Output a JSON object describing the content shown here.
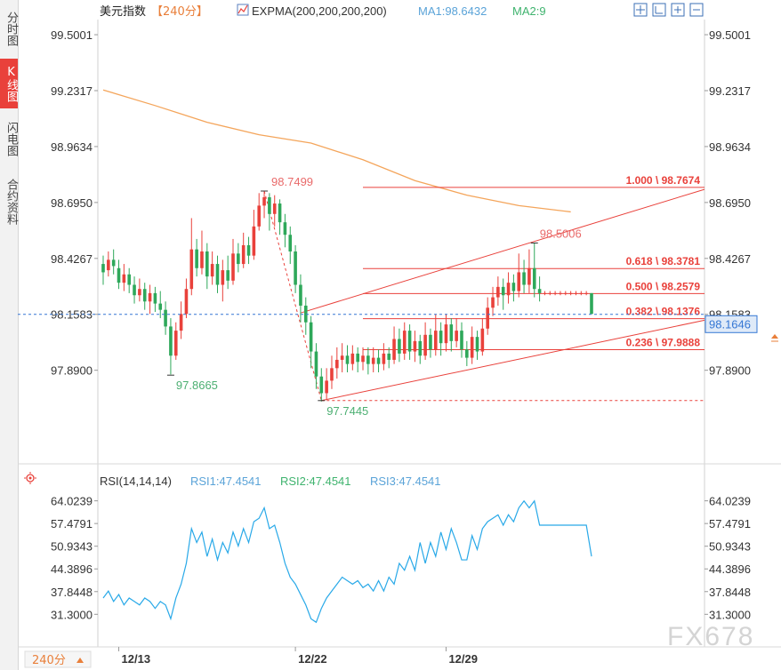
{
  "sidebar": {
    "tabs": [
      {
        "label": "分时图",
        "active": false
      },
      {
        "label": "K线图",
        "active": true
      },
      {
        "label": "闪电图",
        "active": false
      },
      {
        "label": "合约资料",
        "active": false
      }
    ]
  },
  "header": {
    "symbol": "美元指数",
    "period": "【240分】",
    "indicator": "EXPMA(200,200,200,200)",
    "ma1": "MA1:98.6432",
    "ma2": "MA2:9"
  },
  "rsi_header": {
    "name": "RSI(14,14,14)",
    "rsi1": "RSI1:47.4541",
    "rsi2": "RSI2:47.4541",
    "rsi3": "RSI3:47.4541"
  },
  "footer": {
    "period_button": "240分",
    "watermark": "FX678"
  },
  "colors": {
    "up": "#e9413b",
    "down": "#2ea85a",
    "expma": "#f4a55b",
    "rsi": "#29a9e8",
    "grid_label": "#333333",
    "current_price": "#3577d4"
  },
  "chart_data": {
    "type": "candlestick",
    "price_axis": {
      "range": [
        97.62,
        99.56
      ],
      "ticks": [
        "99.5001",
        "99.2317",
        "98.9634",
        "98.6950",
        "98.4267",
        "98.1583",
        "97.8900"
      ]
    },
    "rsi_axis": {
      "range": [
        26.0,
        67.0
      ],
      "ticks": [
        "64.0239",
        "57.4791",
        "50.9343",
        "44.3896",
        "37.8448",
        "31.3000"
      ]
    },
    "x_labels": [
      {
        "label": "12/13",
        "index": 3
      },
      {
        "label": "12/22",
        "index": 37
      },
      {
        "label": "12/29",
        "index": 66
      }
    ],
    "current_price": "98.1646",
    "price_tag": "98.1583",
    "annotations": {
      "high": {
        "label": "98.7499",
        "index": 31,
        "value": 98.7499
      },
      "low1": {
        "label": "97.8665",
        "index": 13,
        "value": 97.8665
      },
      "low2": {
        "label": "97.7445",
        "index": 42,
        "value": 97.7445
      },
      "high2": {
        "label": "98.5006",
        "index": 83,
        "value": 98.5006
      }
    },
    "fib_levels": [
      {
        "label": "1.000 \\ 98.7674",
        "value": 98.7674
      },
      {
        "label": "0.618 \\ 98.3781",
        "value": 98.3781
      },
      {
        "label": "0.500 \\ 98.2579",
        "value": 98.2579
      },
      {
        "label": "0.382 \\ 98.1376",
        "value": 98.1376
      },
      {
        "label": "0.236 \\ 97.9888",
        "value": 97.9888
      }
    ],
    "expma": [
      [
        0,
        99.235
      ],
      [
        10,
        99.16
      ],
      [
        20,
        99.08
      ],
      [
        30,
        99.02
      ],
      [
        40,
        98.98
      ],
      [
        50,
        98.9
      ],
      [
        60,
        98.8
      ],
      [
        70,
        98.73
      ],
      [
        80,
        98.68
      ],
      [
        90,
        98.65
      ]
    ],
    "candles": [
      [
        98.4,
        98.36,
        98.44,
        98.3
      ],
      [
        98.37,
        98.42,
        98.46,
        98.34
      ],
      [
        98.42,
        98.39,
        98.47,
        98.35
      ],
      [
        98.38,
        98.31,
        98.42,
        98.28
      ],
      [
        98.31,
        98.35,
        98.4,
        98.27
      ],
      [
        98.35,
        98.3,
        98.38,
        98.26
      ],
      [
        98.3,
        98.25,
        98.34,
        98.21
      ],
      [
        98.25,
        98.28,
        98.33,
        98.22
      ],
      [
        98.28,
        98.22,
        98.31,
        98.18
      ],
      [
        98.22,
        98.26,
        98.3,
        98.16
      ],
      [
        98.26,
        98.21,
        98.29,
        98.17
      ],
      [
        98.21,
        98.18,
        98.27,
        98.14
      ],
      [
        98.18,
        98.1,
        98.22,
        98.06
      ],
      [
        98.1,
        97.96,
        98.14,
        97.87
      ],
      [
        97.96,
        98.08,
        98.12,
        97.94
      ],
      [
        98.08,
        98.16,
        98.22,
        98.04
      ],
      [
        98.16,
        98.28,
        98.33,
        98.14
      ],
      [
        98.28,
        98.47,
        98.62,
        98.25
      ],
      [
        98.47,
        98.38,
        98.52,
        98.34
      ],
      [
        98.38,
        98.46,
        98.56,
        98.35
      ],
      [
        98.46,
        98.34,
        98.5,
        98.28
      ],
      [
        98.34,
        98.4,
        98.46,
        98.3
      ],
      [
        98.4,
        98.3,
        98.44,
        98.26
      ],
      [
        98.3,
        98.37,
        98.42,
        98.22
      ],
      [
        98.37,
        98.32,
        98.44,
        98.28
      ],
      [
        98.32,
        98.45,
        98.52,
        98.3
      ],
      [
        98.45,
        98.4,
        98.5,
        98.36
      ],
      [
        98.4,
        98.49,
        98.55,
        98.38
      ],
      [
        98.49,
        98.44,
        98.53,
        98.4
      ],
      [
        98.44,
        98.58,
        98.66,
        98.42
      ],
      [
        98.58,
        98.68,
        98.74,
        98.56
      ],
      [
        98.68,
        98.72,
        98.75,
        98.62
      ],
      [
        98.72,
        98.64,
        98.74,
        98.56
      ],
      [
        98.64,
        98.69,
        98.73,
        98.58
      ],
      [
        98.69,
        98.6,
        98.71,
        98.54
      ],
      [
        98.6,
        98.54,
        98.64,
        98.48
      ],
      [
        98.54,
        98.46,
        98.58,
        98.4
      ],
      [
        98.46,
        98.3,
        98.49,
        98.26
      ],
      [
        98.3,
        98.2,
        98.35,
        98.12
      ],
      [
        98.2,
        98.12,
        98.24,
        98.06
      ],
      [
        98.12,
        97.98,
        98.15,
        97.9
      ],
      [
        97.98,
        97.86,
        98.02,
        97.8
      ],
      [
        97.86,
        97.78,
        97.9,
        97.74
      ],
      [
        97.78,
        97.84,
        97.9,
        97.75
      ],
      [
        97.84,
        97.9,
        97.96,
        97.8
      ],
      [
        97.9,
        97.94,
        98.0,
        97.85
      ],
      [
        97.94,
        97.96,
        98.02,
        97.88
      ],
      [
        97.96,
        97.92,
        98.01,
        97.88
      ],
      [
        97.92,
        97.97,
        98.01,
        97.89
      ],
      [
        97.97,
        97.93,
        98.0,
        97.88
      ],
      [
        97.93,
        97.96,
        98.0,
        97.89
      ],
      [
        97.96,
        97.92,
        98.0,
        97.87
      ],
      [
        97.92,
        97.95,
        98.0,
        97.88
      ],
      [
        97.95,
        97.92,
        97.99,
        97.88
      ],
      [
        97.92,
        97.97,
        98.02,
        97.89
      ],
      [
        97.97,
        97.94,
        98.0,
        97.9
      ],
      [
        97.94,
        98.04,
        98.1,
        97.92
      ],
      [
        98.04,
        97.97,
        98.09,
        97.93
      ],
      [
        97.97,
        98.08,
        98.12,
        97.94
      ],
      [
        98.08,
        97.98,
        98.11,
        97.94
      ],
      [
        97.98,
        98.03,
        98.08,
        97.93
      ],
      [
        98.03,
        97.96,
        98.06,
        97.92
      ],
      [
        97.96,
        98.06,
        98.12,
        97.94
      ],
      [
        98.06,
        97.99,
        98.09,
        97.95
      ],
      [
        97.99,
        98.08,
        98.16,
        97.96
      ],
      [
        98.08,
        98.02,
        98.12,
        97.96
      ],
      [
        98.02,
        98.11,
        98.16,
        97.98
      ],
      [
        98.11,
        98.03,
        98.14,
        97.98
      ],
      [
        98.03,
        98.08,
        98.14,
        98.0
      ],
      [
        98.08,
        97.99,
        98.12,
        97.95
      ],
      [
        97.99,
        97.95,
        98.03,
        97.91
      ],
      [
        97.95,
        98.05,
        98.1,
        97.92
      ],
      [
        98.05,
        97.98,
        98.08,
        97.94
      ],
      [
        97.98,
        98.09,
        98.14,
        97.96
      ],
      [
        98.09,
        98.19,
        98.24,
        98.06
      ],
      [
        98.19,
        98.24,
        98.29,
        98.15
      ],
      [
        98.24,
        98.29,
        98.34,
        98.2
      ],
      [
        98.29,
        98.25,
        98.33,
        98.18
      ],
      [
        98.25,
        98.31,
        98.36,
        98.21
      ],
      [
        98.31,
        98.27,
        98.35,
        98.22
      ],
      [
        98.27,
        98.36,
        98.45,
        98.24
      ],
      [
        98.36,
        98.3,
        98.42,
        98.26
      ],
      [
        98.3,
        98.38,
        98.47,
        98.26
      ],
      [
        98.38,
        98.28,
        98.5,
        98.24
      ],
      [
        98.28,
        98.26,
        98.34,
        98.22
      ],
      [
        98.26,
        98.26,
        98.27,
        98.25
      ],
      [
        98.26,
        98.26,
        98.27,
        98.25
      ],
      [
        98.26,
        98.26,
        98.27,
        98.25
      ],
      [
        98.26,
        98.26,
        98.27,
        98.25
      ],
      [
        98.26,
        98.26,
        98.27,
        98.25
      ],
      [
        98.26,
        98.26,
        98.27,
        98.25
      ],
      [
        98.26,
        98.26,
        98.27,
        98.25
      ],
      [
        98.26,
        98.26,
        98.27,
        98.25
      ],
      [
        98.26,
        98.26,
        98.27,
        98.25
      ],
      [
        98.26,
        98.16,
        98.26,
        98.16
      ]
    ],
    "rsi": [
      36,
      38,
      35,
      37,
      34,
      36,
      35,
      34,
      36,
      35,
      33,
      35,
      34,
      30,
      36,
      40,
      46,
      56,
      52,
      55,
      48,
      53,
      47,
      52,
      49,
      55,
      51,
      56,
      52,
      58,
      59,
      62,
      56,
      57,
      52,
      46,
      42,
      40,
      37,
      34,
      30,
      29,
      33,
      36,
      38,
      40,
      42,
      41,
      40,
      41,
      39,
      40,
      38,
      41,
      38,
      42,
      40,
      46,
      44,
      48,
      44,
      52,
      46,
      52,
      48,
      55,
      50,
      56,
      52,
      47,
      47,
      54,
      50,
      56,
      58,
      59,
      60,
      57,
      60,
      58,
      62,
      64,
      62,
      64,
      57,
      57,
      57,
      57,
      57,
      57,
      57,
      57,
      57,
      57,
      48
    ]
  }
}
